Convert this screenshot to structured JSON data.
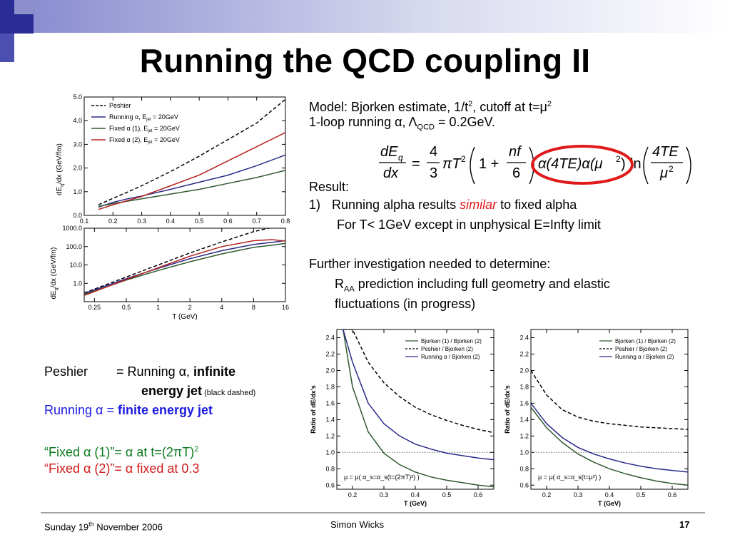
{
  "slide": {
    "title": "Running the QCD coupling II",
    "page_number": "17"
  },
  "footer": {
    "date_pre": "Sunday 19",
    "date_sup": "th",
    "date_post": " November 2006",
    "author": "Simon Wicks"
  },
  "model": {
    "line1_pre": "Model: Bjorken estimate, 1/t",
    "line1_sup": "2",
    "line1_mid": ", cutoff at t=μ",
    "line1_sup2": "2",
    "line2_pre": "1-loop running α, Λ",
    "line2_sub": "QCD",
    "line2_post": " = 0.2GeV."
  },
  "formula": {
    "lhs_num": "dE",
    "lhs_num_sub": "q",
    "lhs_den": "dx",
    "eq": "=",
    "frac_num": "4",
    "frac_den": "3",
    "pi_t": "πT",
    "pi_t_sup": "2",
    "paren_one": "1 +",
    "nf_num": "nf",
    "nf_den": "6",
    "alphas": "α(4TE)α(μ",
    "alphas_sup": "2",
    "alphas_end": ")",
    "ln": "ln",
    "log_num": "4TE",
    "log_den": "μ",
    "log_den_sup": "2"
  },
  "result": {
    "heading": "Result:",
    "item1_num": "1)",
    "item1_pre": "Running alpha results ",
    "item1_em": "similar",
    "item1_post": " to fixed alpha",
    "item1_sub": "For T< 1GeV except in unphysical E=Infty limit",
    "further": "Further investigation needed to determine:",
    "raa_R": "R",
    "raa_sub": "AA",
    "raa_rest": " prediction including full geometry and elastic",
    "raa_line2": "fluctuations (in progress)"
  },
  "legend_text": {
    "peshier_label": "Peshier",
    "peshier_eq": "= Running α, ",
    "peshier_bold": "infinite",
    "peshier_bold2": "energy jet",
    "peshier_small": " (black dashed)",
    "running_pre": "Running α = ",
    "running_bold": "finite energy jet",
    "fixed1_pre": "“Fixed α (1)”= α at t=(2πT)",
    "fixed1_sup": "2",
    "fixed2": "“Fixed α (2)”= α fixed at 0.3"
  },
  "colors": {
    "peshier": "#000000",
    "running": "#1a1adf",
    "fixed1": "#0a7a1e",
    "fixed2": "#d11a1a",
    "circle": "#e0191a",
    "title_bar": "#2b2d96",
    "curve_blue": "#2a2a8a",
    "curve_green": "#2f5a2f",
    "curve_black": "#000000",
    "curve_red": "#b52020"
  },
  "chart_data": [
    {
      "type": "line",
      "id": "top-left",
      "xlabel": "",
      "ylabel": "dEₓ/dx (GeV/fm)",
      "ylabel_main": "dE",
      "ylabel_sub": "q",
      "ylabel_rest": "/dx (GeV/fm)",
      "xlim": [
        0.1,
        0.8
      ],
      "ylim": [
        0.0,
        5.0
      ],
      "xticks": [
        "0.1",
        "0.2",
        "0.3",
        "0.4",
        "0.5",
        "0.6",
        "0.7",
        "0.8"
      ],
      "yticks": [
        "0.0",
        "1.0",
        "2.0",
        "3.0",
        "4.0",
        "5.0"
      ],
      "legend": [
        "Peshier",
        "Running α, E",
        "Fixed α (1), E",
        "Fixed α (2), E"
      ],
      "legend_sub": [
        "",
        "jet",
        "jet",
        "jet"
      ],
      "legend_suffix": [
        "",
        " = 20GeV",
        " = 20GeV",
        " = 20GeV"
      ],
      "legend_position": "top-left",
      "x": [
        0.15,
        0.2,
        0.25,
        0.3,
        0.4,
        0.5,
        0.6,
        0.7,
        0.8
      ],
      "series": [
        {
          "name": "Peshier",
          "color_key": "curve_black",
          "dash": true,
          "values": [
            0.45,
            0.72,
            0.98,
            1.25,
            1.85,
            2.5,
            3.2,
            3.9,
            4.9
          ]
        },
        {
          "name": "Running α, E = 20GeV",
          "color_key": "curve_blue",
          "values": [
            0.35,
            0.55,
            0.7,
            0.82,
            1.1,
            1.4,
            1.7,
            2.1,
            2.55
          ]
        },
        {
          "name": "Fixed α (1), E = 20GeV",
          "color_key": "curve_green",
          "values": [
            0.38,
            0.5,
            0.6,
            0.7,
            0.9,
            1.1,
            1.35,
            1.6,
            1.9
          ]
        },
        {
          "name": "Fixed α (2), E = 20GeV",
          "color_key": "curve_red",
          "values": [
            0.25,
            0.45,
            0.62,
            0.8,
            1.25,
            1.7,
            2.3,
            2.9,
            3.5
          ]
        }
      ]
    },
    {
      "type": "line",
      "id": "bottom-left",
      "xlabel": "T (GeV)",
      "ylabel_main": "dE",
      "ylabel_sub": "q",
      "ylabel_rest": "/dx (GeV/fm)",
      "log_x": true,
      "log_y": true,
      "xlim": [
        0.2,
        16
      ],
      "ylim": [
        0.1,
        1000
      ],
      "xticks": [
        "0.25",
        "0.5",
        "1",
        "2",
        "4",
        "8",
        "16"
      ],
      "yticks": [
        "1000.0",
        "100.0",
        "10.0",
        "1.0"
      ],
      "x": [
        0.2,
        0.5,
        1,
        2,
        4,
        8,
        12,
        16
      ],
      "series": [
        {
          "name": "Peshier",
          "color_key": "curve_black",
          "dash": true,
          "values": [
            0.3,
            2.2,
            10,
            45,
            180,
            650,
            1100,
            1500
          ]
        },
        {
          "name": "Running α",
          "color_key": "curve_blue",
          "values": [
            0.28,
            1.8,
            6.5,
            22,
            60,
            130,
            170,
            210
          ]
        },
        {
          "name": "Fixed α (1)",
          "color_key": "curve_green",
          "values": [
            0.25,
            1.5,
            5,
            15,
            40,
            90,
            120,
            150
          ]
        },
        {
          "name": "Fixed α (2)",
          "color_key": "curve_red",
          "values": [
            0.22,
            1.6,
            7,
            30,
            100,
            210,
            240,
            200
          ]
        }
      ]
    },
    {
      "type": "line",
      "id": "bottom-right-1",
      "xlabel": "T (GeV)",
      "ylabel": "Ratio of dE/dx's",
      "xlim": [
        0.15,
        0.65
      ],
      "ylim": [
        0.55,
        2.5
      ],
      "xticks": [
        "0.2",
        "0.3",
        "0.4",
        "0.5",
        "0.6"
      ],
      "yticks": [
        "0.6",
        "0.8",
        "1.0",
        "1.2",
        "1.4",
        "1.6",
        "1.8",
        "2.0",
        "2.2",
        "2.4"
      ],
      "legend": [
        "Bjorken (1) / Bjorken (2)",
        "Peshier / Bjorken (2)",
        "Running α / Bjorken (2)"
      ],
      "legend_position": "top-right",
      "annotation": "μ = μ( α_s=α_s(t=(2πT)²) )",
      "x": [
        0.17,
        0.2,
        0.25,
        0.3,
        0.35,
        0.4,
        0.45,
        0.5,
        0.55,
        0.6,
        0.65
      ],
      "series": [
        {
          "name": "Bjorken (1) / Bjorken (2)",
          "color_key": "curve_green",
          "values": [
            2.5,
            1.8,
            1.25,
            0.99,
            0.85,
            0.76,
            0.7,
            0.66,
            0.63,
            0.6,
            0.58
          ]
        },
        {
          "name": "Peshier / Bjorken (2)",
          "color_key": "curve_black",
          "dash": true,
          "values": [
            2.5,
            2.5,
            2.1,
            1.85,
            1.68,
            1.55,
            1.46,
            1.39,
            1.33,
            1.28,
            1.24
          ]
        },
        {
          "name": "Running α / Bjorken (2)",
          "color_key": "curve_blue",
          "values": [
            2.5,
            2.1,
            1.6,
            1.35,
            1.2,
            1.1,
            1.04,
            0.99,
            0.96,
            0.93,
            0.91
          ]
        }
      ],
      "reference_line": 1.0
    },
    {
      "type": "line",
      "id": "bottom-right-2",
      "xlabel": "T (GeV)",
      "ylabel": "Ratio of dE/dx's",
      "xlim": [
        0.15,
        0.65
      ],
      "ylim": [
        0.55,
        2.5
      ],
      "xticks": [
        "0.2",
        "0.3",
        "0.4",
        "0.5",
        "0.6"
      ],
      "yticks": [
        "0.6",
        "0.8",
        "1.0",
        "1.2",
        "1.4",
        "1.6",
        "1.8",
        "2.0",
        "2.2",
        "2.4"
      ],
      "legend": [
        "Bjorken (1) / Bjorken (2)",
        "Peshier / Bjorken (2)",
        "Running α / Bjorken (2)"
      ],
      "legend_position": "top-right",
      "annotation": "μ = μ( α_s=α_s(t=μ²) )",
      "x": [
        0.15,
        0.2,
        0.25,
        0.3,
        0.35,
        0.4,
        0.45,
        0.5,
        0.55,
        0.6,
        0.65
      ],
      "series": [
        {
          "name": "Bjorken (1) / Bjorken (2)",
          "color_key": "curve_green",
          "values": [
            1.55,
            1.3,
            1.12,
            0.98,
            0.88,
            0.8,
            0.74,
            0.69,
            0.65,
            0.62,
            0.6
          ]
        },
        {
          "name": "Peshier / Bjorken (2)",
          "color_key": "curve_black",
          "dash": true,
          "values": [
            2.0,
            1.7,
            1.52,
            1.43,
            1.38,
            1.35,
            1.33,
            1.31,
            1.3,
            1.29,
            1.28
          ]
        },
        {
          "name": "Running α / Bjorken (2)",
          "color_key": "curve_blue",
          "values": [
            1.6,
            1.35,
            1.18,
            1.06,
            0.98,
            0.92,
            0.87,
            0.83,
            0.8,
            0.78,
            0.76
          ]
        }
      ],
      "reference_line": 1.0
    }
  ]
}
